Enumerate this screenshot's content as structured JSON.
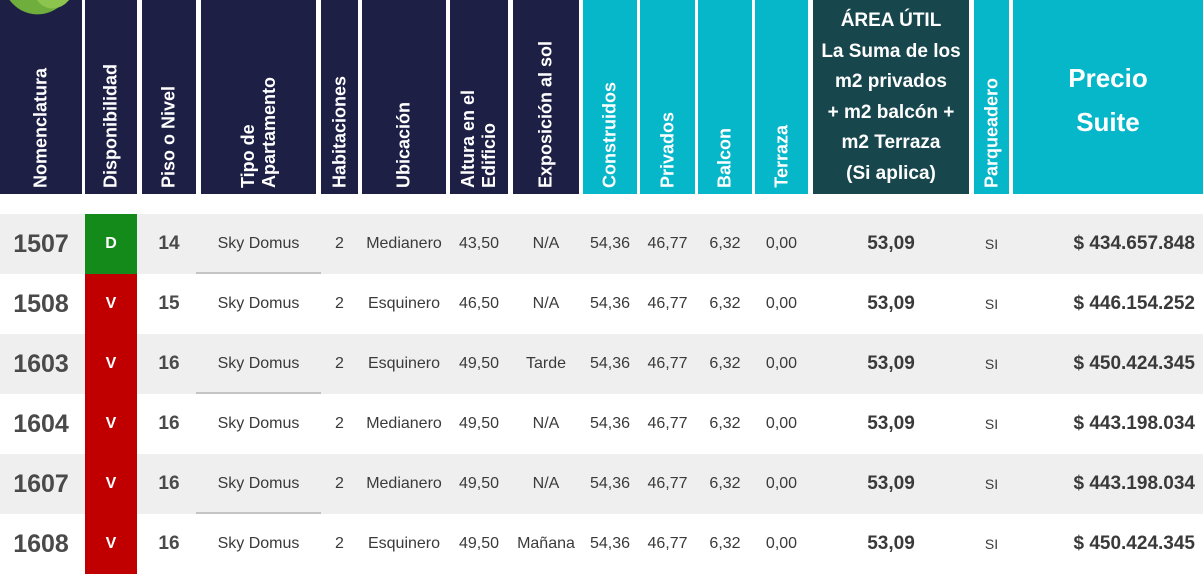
{
  "headers": {
    "nomenclatura": "Nomenclatura",
    "disponibilidad": "Disponibilidad",
    "piso": "Piso o Nivel",
    "tipo": "Tipo de\nApartamento",
    "habitaciones": "Habitaciones",
    "ubicacion": "Ubicación",
    "altura": "Altura en el\nEdificio",
    "exposicion": "Exposición al sol",
    "construidos": "Construidos",
    "privados": "Privados",
    "balcon": "Balcon",
    "terraza": "Terraza",
    "area_util": "ÁREA ÚTIL\nLa Suma de los\nm2 privados\n+ m2 balcón +\nm2 Terraza\n(Si aplica)",
    "parqueadero": "Parqueadero",
    "precio": "Precio\nSuite"
  },
  "colors": {
    "header_navy": "#1d1f45",
    "header_cyan": "#06b6c9",
    "header_teal": "#17464d",
    "status_vendido": "#c00000",
    "status_disponible": "#138a1a"
  },
  "rows": [
    {
      "nomenclatura": "1507",
      "disponibilidad": "D",
      "piso": "14",
      "tipo": "Sky Domus",
      "habitaciones": "2",
      "ubicacion": "Medianero",
      "altura": "43,50",
      "exposicion": "N/A",
      "construidos": "54,36",
      "privados": "46,77",
      "balcon": "6,32",
      "terraza": "0,00",
      "area_util": "53,09",
      "parqueadero": "SI",
      "precio": "$ 434.657.848"
    },
    {
      "nomenclatura": "1508",
      "disponibilidad": "V",
      "piso": "15",
      "tipo": "Sky Domus",
      "habitaciones": "2",
      "ubicacion": "Esquinero",
      "altura": "46,50",
      "exposicion": "N/A",
      "construidos": "54,36",
      "privados": "46,77",
      "balcon": "6,32",
      "terraza": "0,00",
      "area_util": "53,09",
      "parqueadero": "SI",
      "precio": "$ 446.154.252"
    },
    {
      "nomenclatura": "1603",
      "disponibilidad": "V",
      "piso": "16",
      "tipo": "Sky Domus",
      "habitaciones": "2",
      "ubicacion": "Esquinero",
      "altura": "49,50",
      "exposicion": "Tarde",
      "construidos": "54,36",
      "privados": "46,77",
      "balcon": "6,32",
      "terraza": "0,00",
      "area_util": "53,09",
      "parqueadero": "SI",
      "precio": "$ 450.424.345"
    },
    {
      "nomenclatura": "1604",
      "disponibilidad": "V",
      "piso": "16",
      "tipo": "Sky Domus",
      "habitaciones": "2",
      "ubicacion": "Medianero",
      "altura": "49,50",
      "exposicion": "N/A",
      "construidos": "54,36",
      "privados": "46,77",
      "balcon": "6,32",
      "terraza": "0,00",
      "area_util": "53,09",
      "parqueadero": "SI",
      "precio": "$ 443.198.034"
    },
    {
      "nomenclatura": "1607",
      "disponibilidad": "V",
      "piso": "16",
      "tipo": "Sky Domus",
      "habitaciones": "2",
      "ubicacion": "Medianero",
      "altura": "49,50",
      "exposicion": "N/A",
      "construidos": "54,36",
      "privados": "46,77",
      "balcon": "6,32",
      "terraza": "0,00",
      "area_util": "53,09",
      "parqueadero": "SI",
      "precio": "$ 443.198.034"
    },
    {
      "nomenclatura": "1608",
      "disponibilidad": "V",
      "piso": "16",
      "tipo": "Sky Domus",
      "habitaciones": "2",
      "ubicacion": "Esquinero",
      "altura": "49,50",
      "exposicion": "Mañana",
      "construidos": "54,36",
      "privados": "46,77",
      "balcon": "6,32",
      "terraza": "0,00",
      "area_util": "53,09",
      "parqueadero": "SI",
      "precio": "$ 450.424.345"
    }
  ]
}
